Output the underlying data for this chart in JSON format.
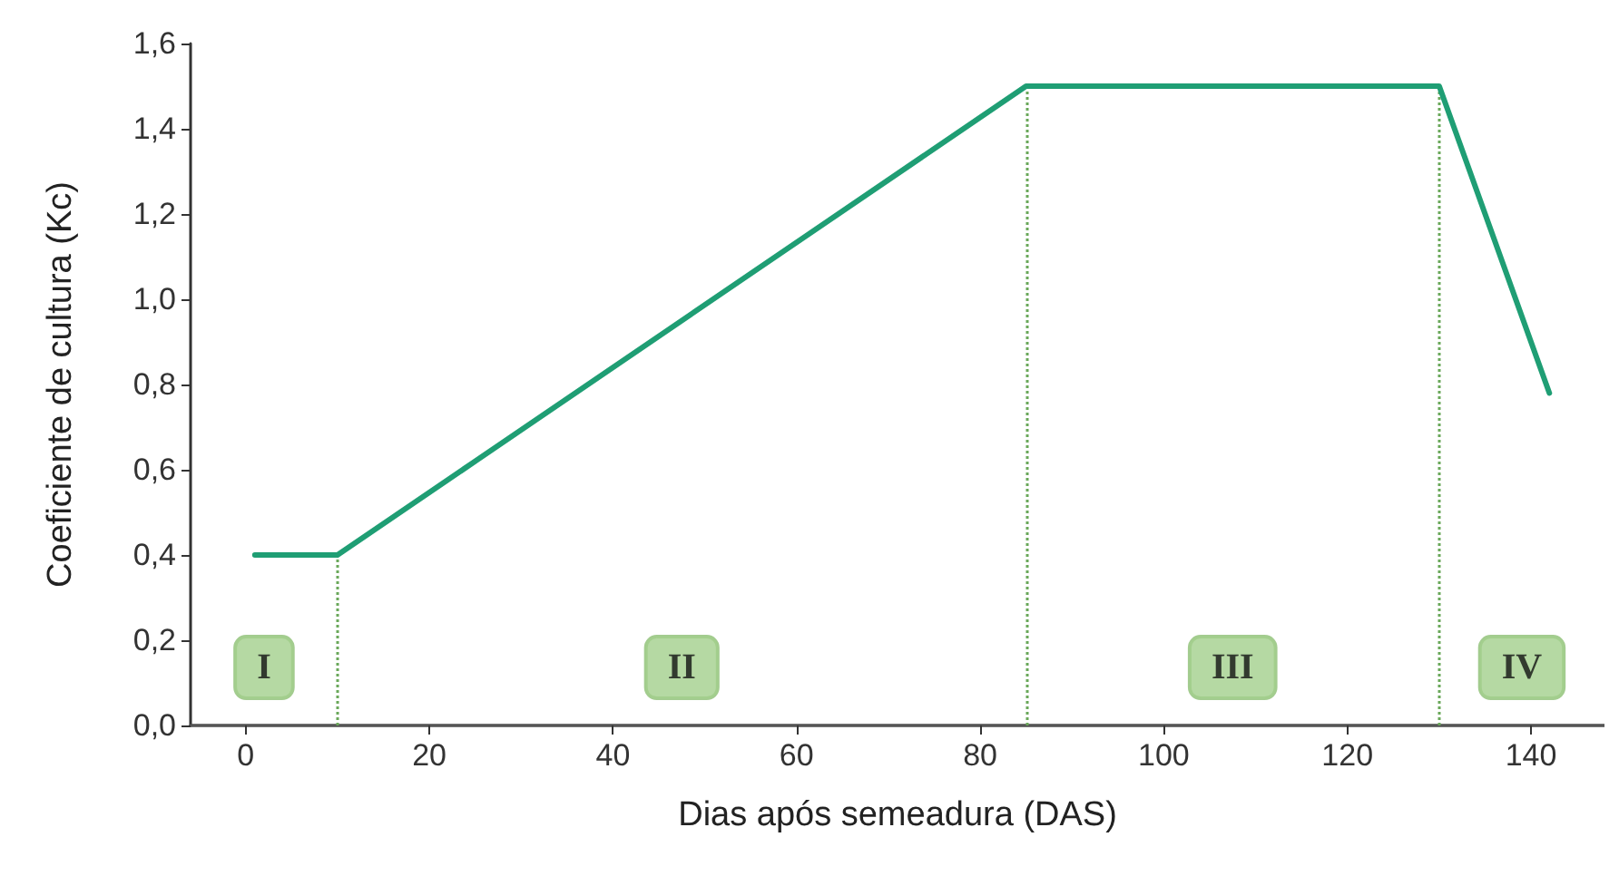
{
  "chart_data": {
    "type": "line",
    "xlabel": "Dias após semeadura (DAS)",
    "ylabel": "Coeficiente de cultura (Kc)",
    "x": [
      1,
      10,
      85,
      130,
      142
    ],
    "series": [
      {
        "color": "#1f9e74",
        "values": [
          0.4,
          0.4,
          1.5,
          1.5,
          0.78
        ]
      }
    ],
    "xlim": [
      -6,
      148
    ],
    "xticks": [
      0,
      20,
      40,
      60,
      80,
      100,
      120,
      140
    ],
    "ylim": [
      0,
      1.6
    ],
    "yticks": [
      {
        "value": 0,
        "label": "0,0"
      },
      {
        "value": 0.2,
        "label": "0,2"
      },
      {
        "value": 0.4,
        "label": "0,4"
      },
      {
        "value": 0.6,
        "label": "0,6"
      },
      {
        "value": 0.8,
        "label": "0,8"
      },
      {
        "value": 1.0,
        "label": "1,0"
      },
      {
        "value": 1.2,
        "label": "1,2"
      },
      {
        "value": 1.4,
        "label": "1,4"
      },
      {
        "value": 1.6,
        "label": "1,6"
      }
    ],
    "ref_lines": [
      {
        "axis": "x",
        "value": 10,
        "color": "#6aa85a",
        "line_style": "dotted"
      },
      {
        "axis": "x",
        "value": 85,
        "color": "#6aa85a",
        "line_style": "dotted"
      },
      {
        "axis": "x",
        "value": 130,
        "color": "#6aa85a",
        "line_style": "dotted"
      }
    ],
    "annotations": [
      "I",
      "II",
      "III",
      "IV"
    ],
    "grid": false,
    "marker": "none",
    "line_style": "solid"
  }
}
